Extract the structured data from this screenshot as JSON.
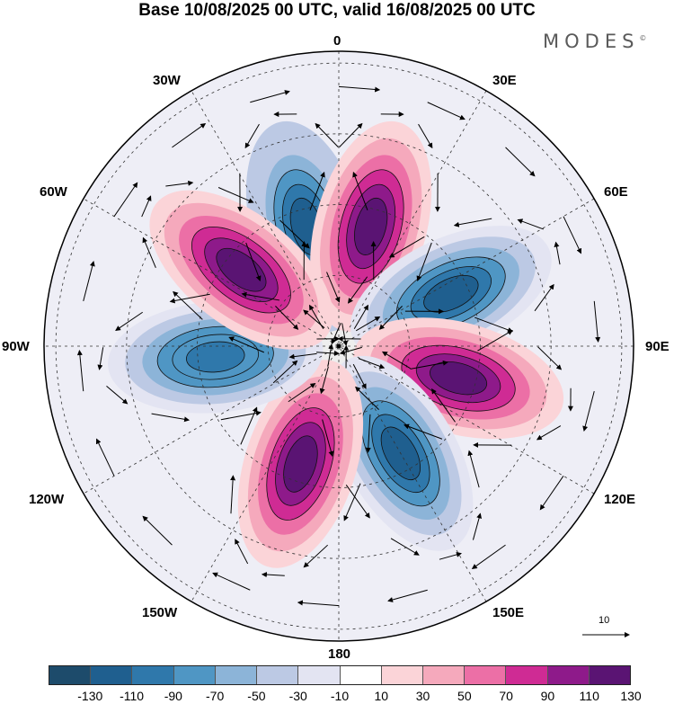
{
  "title": "Base 10/08/2025 00 UTC, valid 16/08/2025 00 UTC",
  "logo": "MODES",
  "logo_mark": "©",
  "longitude_labels": {
    "n0": "0",
    "n30e": "30E",
    "n60e": "60E",
    "n90e": "90E",
    "n120e": "120E",
    "n150e": "150E",
    "n180": "180",
    "n150w": "150W",
    "n120w": "120W",
    "n90w": "90W",
    "n60w": "60W",
    "n30w": "30W"
  },
  "vector_reference": "10",
  "colorbar": {
    "colors": [
      "#1d4b6b",
      "#1f5f8f",
      "#2f78ab",
      "#4f96c4",
      "#8cb4d8",
      "#bcc9e4",
      "#e3e4f2",
      "#ffffff",
      "#fbd4d8",
      "#f5a9bc",
      "#ec6fa6",
      "#cf2b94",
      "#8e1a8a",
      "#5a1473"
    ],
    "ticks": [
      "-130",
      "-110",
      "-90",
      "-70",
      "-50",
      "-30",
      "-10",
      "10",
      "30",
      "50",
      "70",
      "90",
      "110",
      "130"
    ]
  },
  "chart_data": {
    "type": "polar-stereographic-map",
    "title": "Base 10/08/2025 00 UTC, valid 16/08/2025 00 UTC",
    "projection": "south-polar-stereographic",
    "variable": "streamfunction anomaly with wind vectors",
    "vector_reference_units": 10,
    "contour_levels": [
      -130,
      -110,
      -90,
      -70,
      -50,
      -30,
      -10,
      10,
      30,
      50,
      70,
      90,
      110,
      130
    ],
    "centers": [
      {
        "sign": "negative",
        "lon": 345,
        "peak": -120
      },
      {
        "sign": "positive",
        "lon": 15,
        "peak": 120
      },
      {
        "sign": "negative",
        "lon": 65,
        "peak": -115
      },
      {
        "sign": "positive",
        "lon": 105,
        "peak": 120
      },
      {
        "sign": "negative",
        "lon": 150,
        "peak": -115
      },
      {
        "sign": "positive",
        "lon": 198,
        "peak": 120
      },
      {
        "sign": "negative",
        "lon": 265,
        "peak": -105
      },
      {
        "sign": "positive",
        "lon": 308,
        "peak": 120
      }
    ]
  }
}
